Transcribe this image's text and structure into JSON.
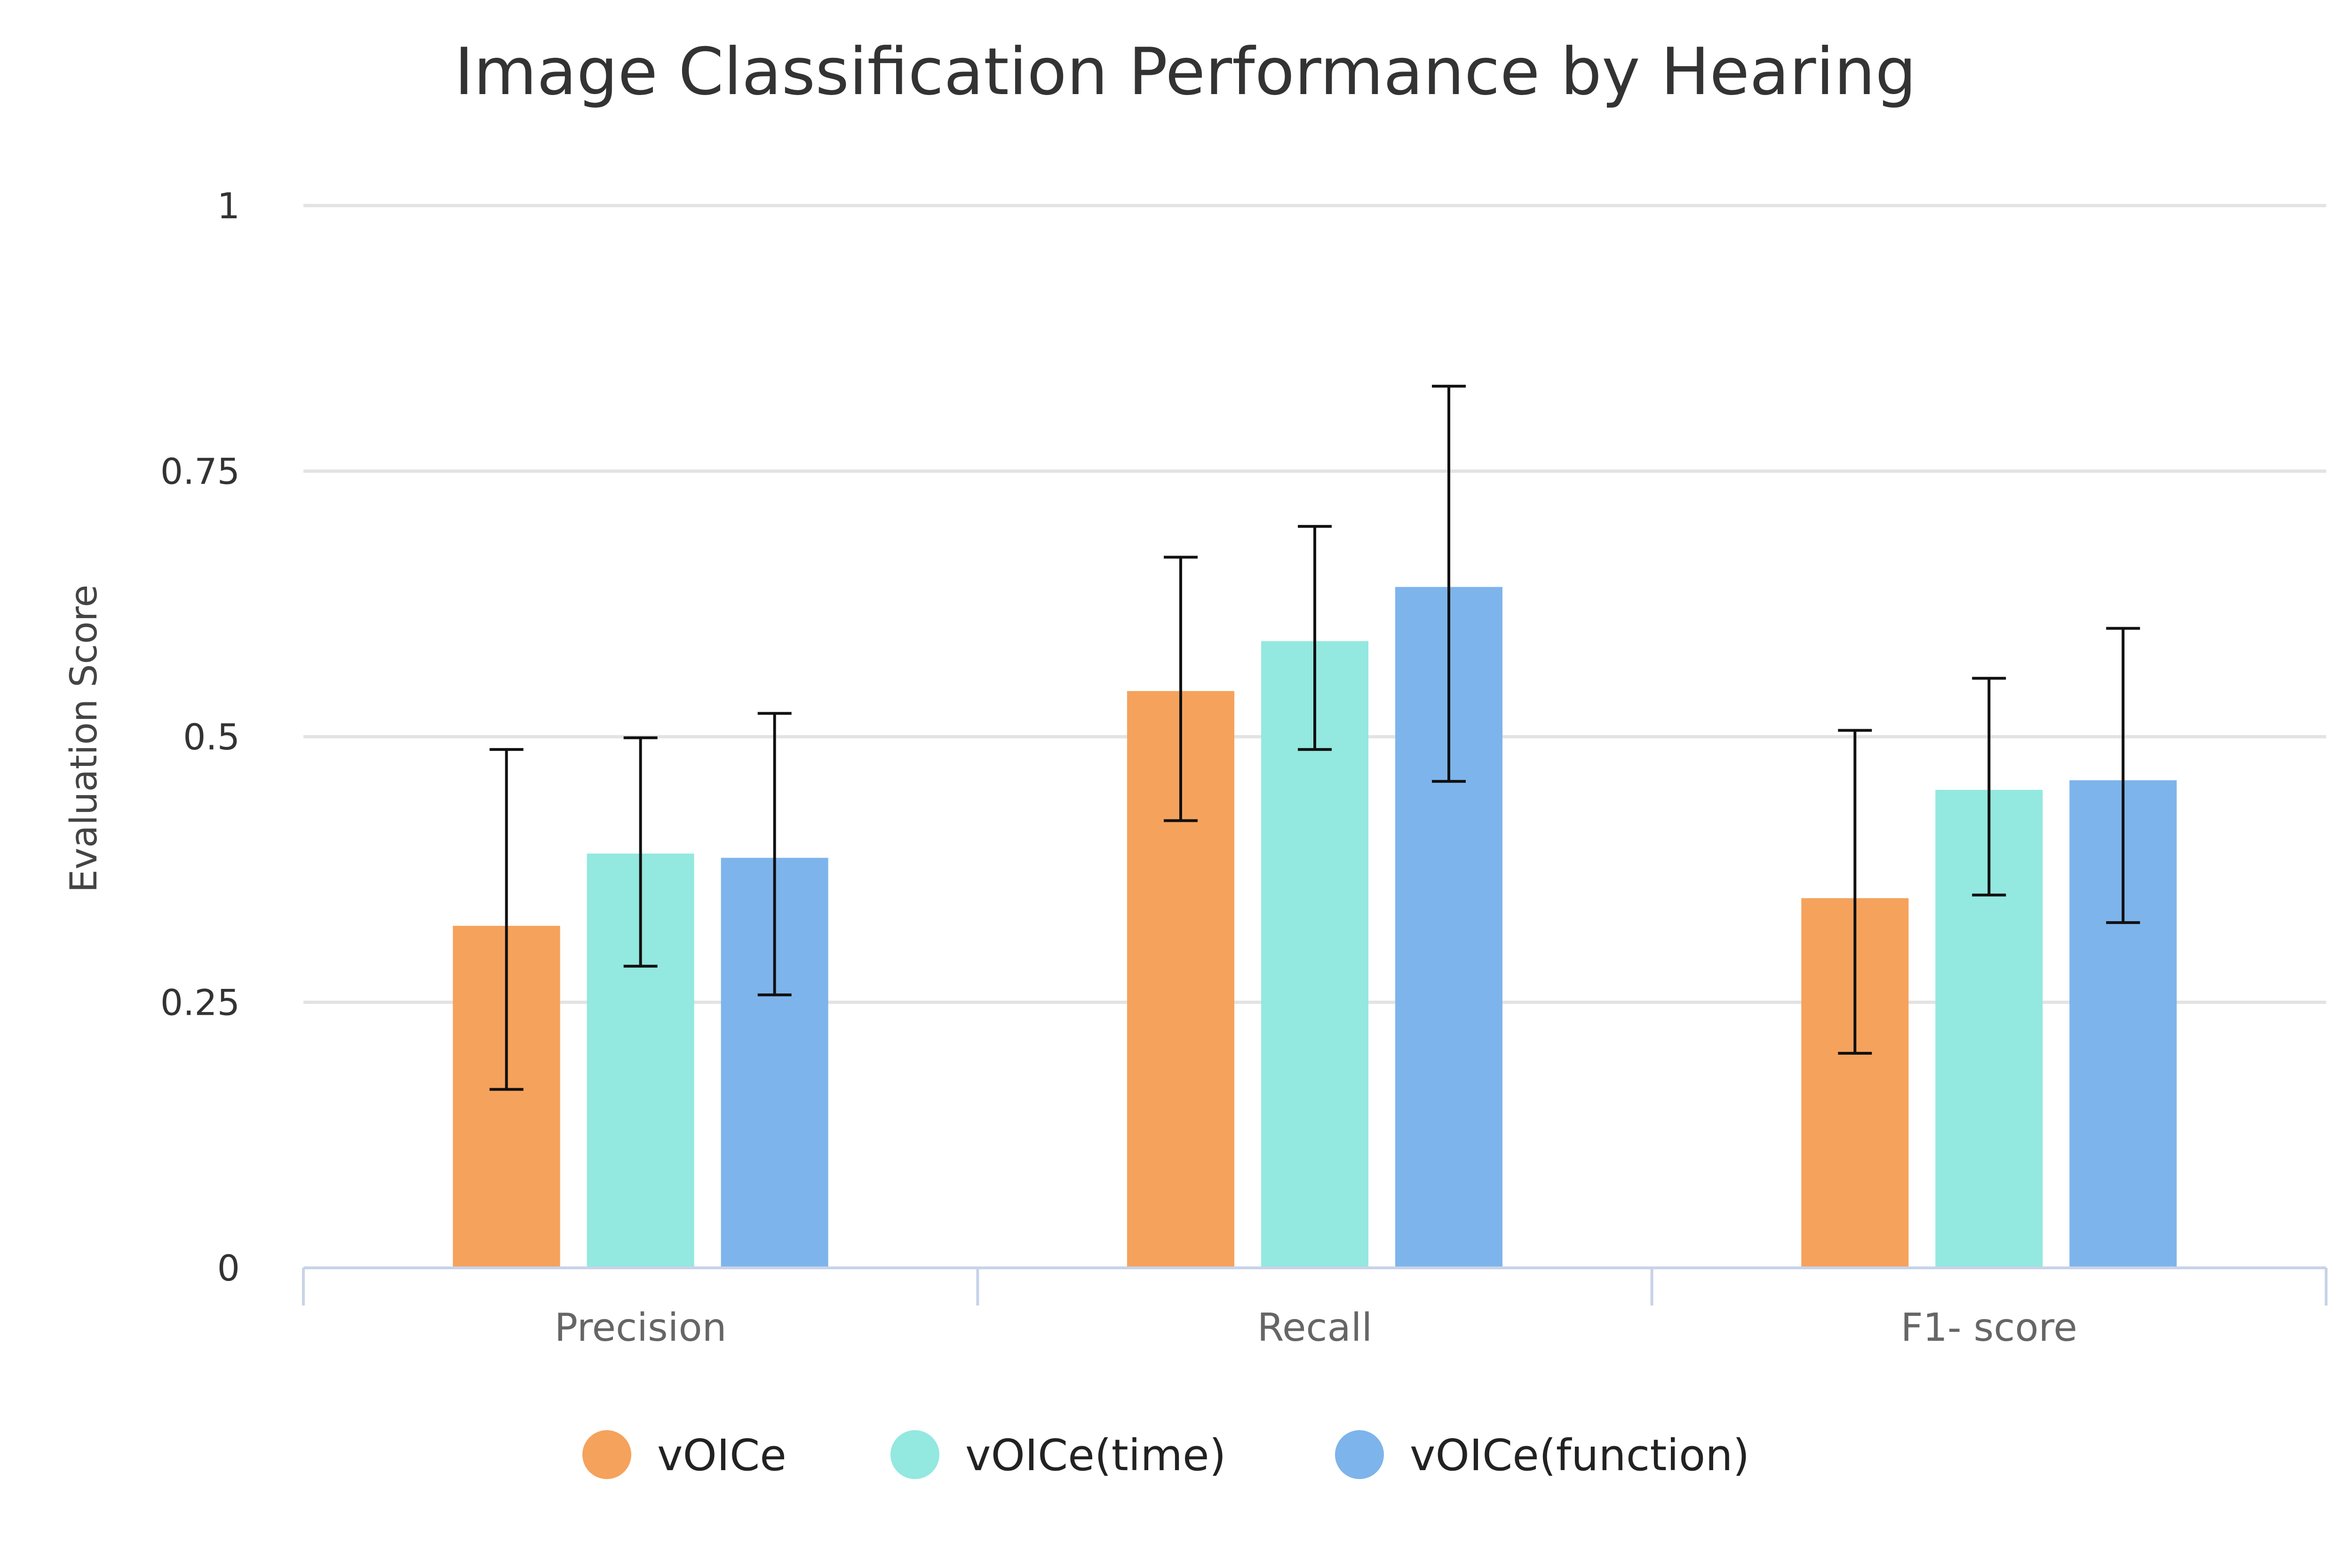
{
  "chart_data": {
    "type": "bar",
    "title": "Image Classification Performance by Hearing",
    "xlabel": "",
    "ylabel": "Evaluation Score",
    "ylim": [
      0,
      1
    ],
    "yticks": [
      "0",
      "0.25",
      "0.5",
      "0.75",
      "1"
    ],
    "categories": [
      "Precision",
      "Recall",
      "F1- score"
    ],
    "series": [
      {
        "name": "vOICe",
        "color": "#f5a25c",
        "values": [
          0.322,
          0.543,
          0.348
        ],
        "error_low": [
          0.168,
          0.421,
          0.202
        ],
        "error_high": [
          0.488,
          0.669,
          0.506
        ]
      },
      {
        "name": "vOICe(time)",
        "color": "#93e8df",
        "values": [
          0.39,
          0.59,
          0.45
        ],
        "error_low": [
          0.284,
          0.488,
          0.351
        ],
        "error_high": [
          0.499,
          0.698,
          0.555
        ]
      },
      {
        "name": "vOICe(function)",
        "color": "#7db4eb",
        "values": [
          0.386,
          0.641,
          0.459
        ],
        "error_low": [
          0.257,
          0.458,
          0.325
        ],
        "error_high": [
          0.522,
          0.83,
          0.602
        ]
      }
    ],
    "grid": true,
    "legend_position": "bottom-center"
  }
}
